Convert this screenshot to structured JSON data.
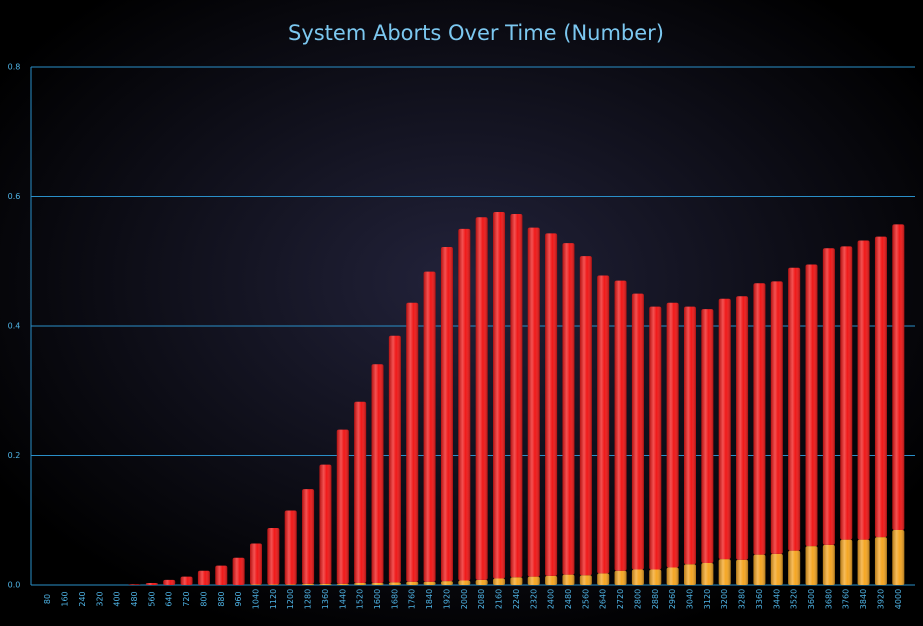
{
  "chart_data": {
    "type": "stacked-bar",
    "title": "System Aborts Over Time (Number)",
    "categories": [
      80,
      160,
      240,
      320,
      400,
      480,
      560,
      640,
      720,
      800,
      880,
      960,
      1040,
      1120,
      1200,
      1280,
      1360,
      1440,
      1520,
      1600,
      1680,
      1760,
      1840,
      1920,
      2000,
      2080,
      2160,
      2240,
      2320,
      2400,
      2480,
      2560,
      2640,
      2720,
      2800,
      2880,
      2960,
      3040,
      3120,
      3200,
      3280,
      3360,
      3440,
      3520,
      3600,
      3680,
      3760,
      3840,
      3920,
      4000
    ],
    "series": [
      {
        "color": "#f5a623",
        "values": [
          0,
          0,
          0,
          0,
          0,
          0,
          0,
          0,
          0,
          0,
          0,
          0,
          0.001,
          0.001,
          0.001,
          0.002,
          0.002,
          0.002,
          0.003,
          0.003,
          0.004,
          0.005,
          0.005,
          0.006,
          0.007,
          0.008,
          0.01,
          0.012,
          0.013,
          0.014,
          0.016,
          0.015,
          0.018,
          0.022,
          0.024,
          0.024,
          0.027,
          0.032,
          0.034,
          0.04,
          0.039,
          0.047,
          0.048,
          0.053,
          0.06,
          0.062,
          0.07,
          0.07,
          0.074,
          0.085
        ]
      },
      {
        "color": "#f01818",
        "values": [
          0,
          0,
          0,
          0,
          0,
          0.001,
          0.003,
          0.008,
          0.013,
          0.022,
          0.03,
          0.042,
          0.063,
          0.087,
          0.114,
          0.146,
          0.184,
          0.238,
          0.28,
          0.338,
          0.381,
          0.431,
          0.479,
          0.516,
          0.543,
          0.56,
          0.566,
          0.561,
          0.539,
          0.529,
          0.512,
          0.493,
          0.46,
          0.448,
          0.426,
          0.406,
          0.409,
          0.398,
          0.392,
          0.402,
          0.407,
          0.419,
          0.421,
          0.437,
          0.435,
          0.458,
          0.453,
          0.462,
          0.464,
          0.472
        ]
      }
    ],
    "ylim": [
      0,
      0.8
    ],
    "yticks": [
      {
        "value": 0,
        "label": "0.0"
      },
      0.2,
      0.4,
      0.6,
      0.8
    ],
    "grid": true
  }
}
